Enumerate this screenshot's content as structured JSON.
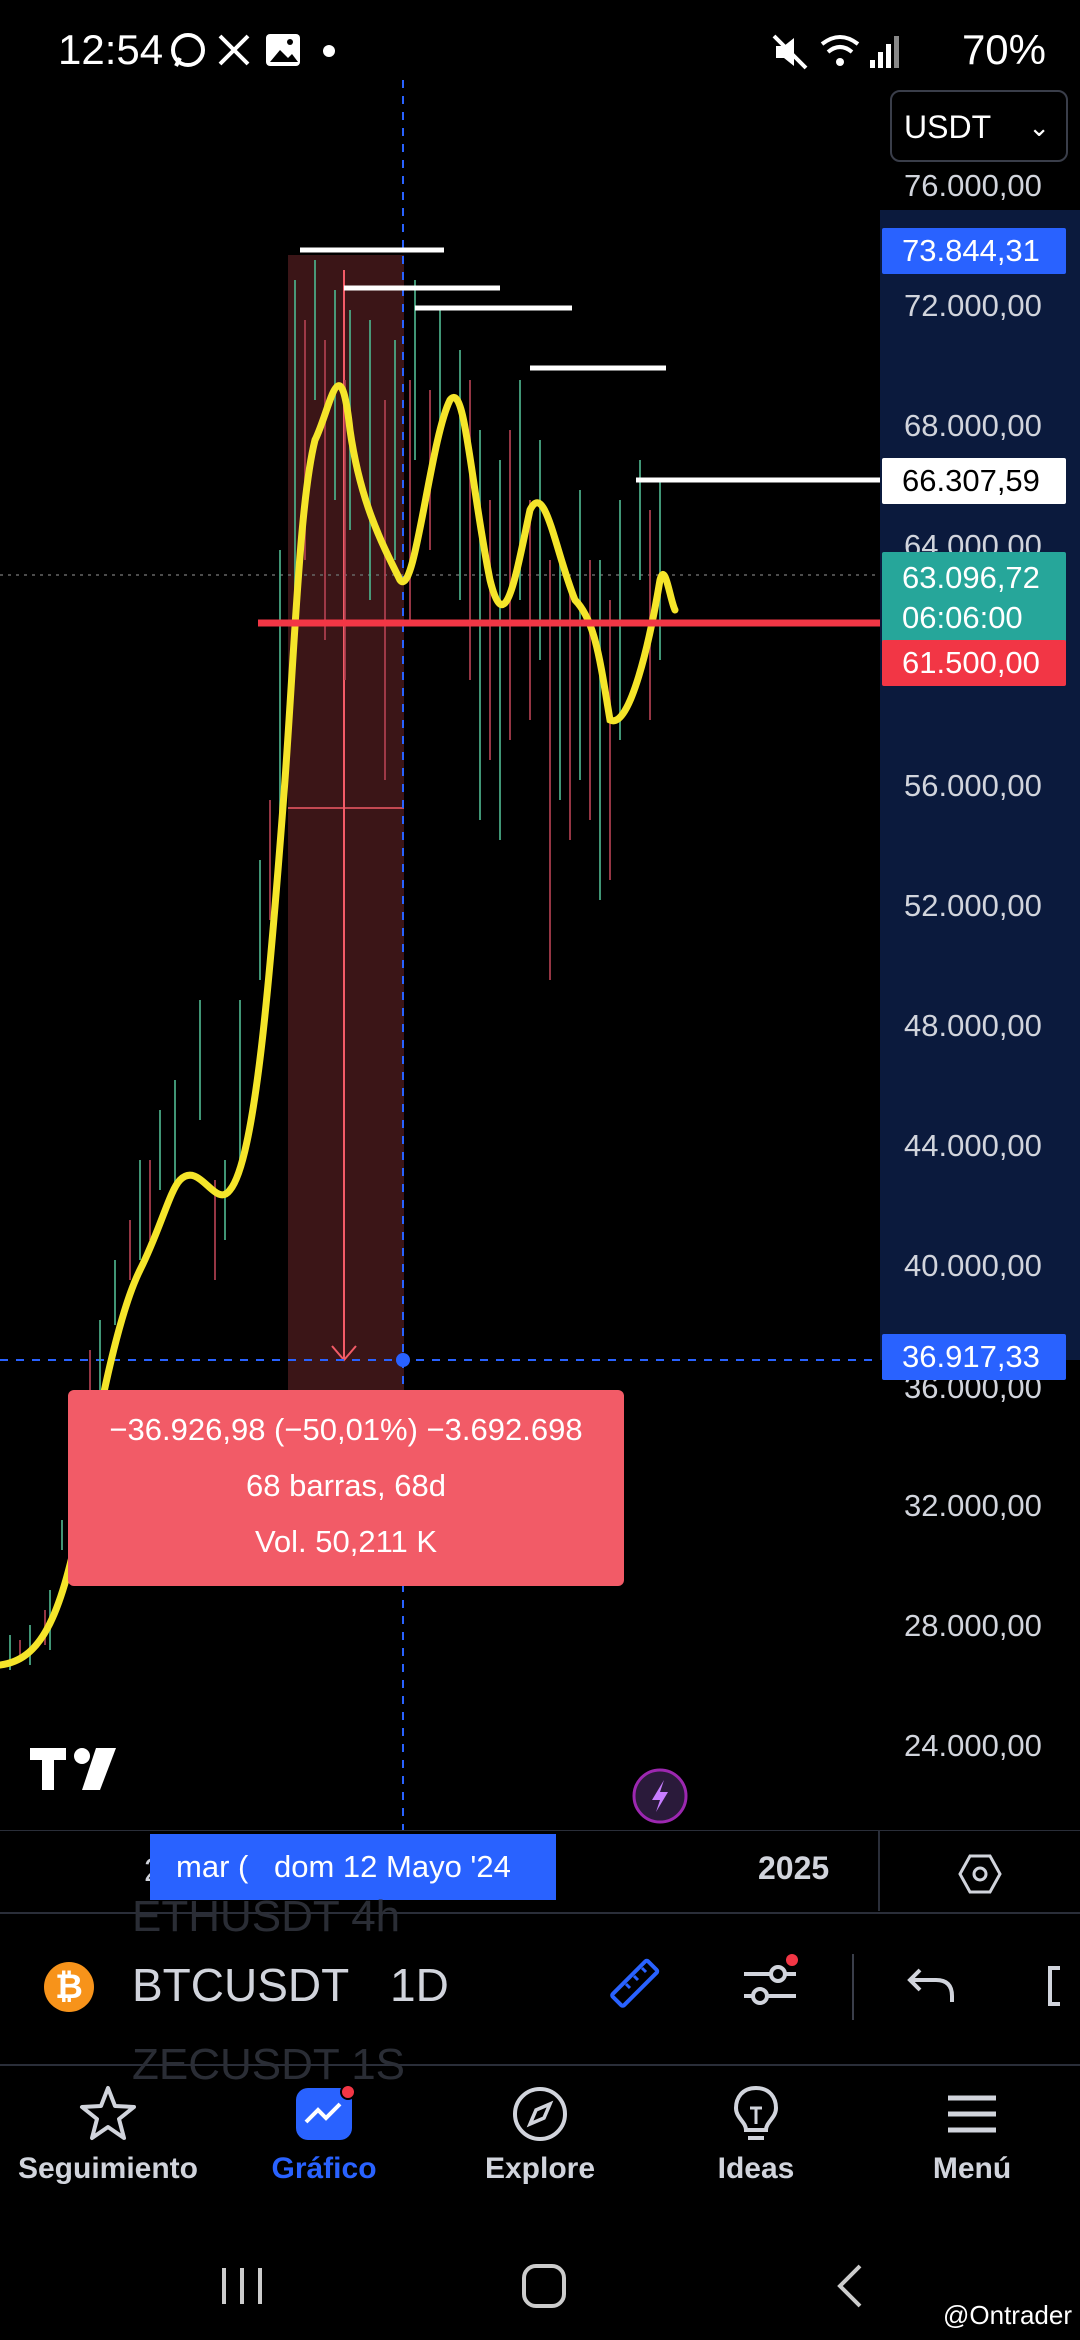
{
  "status": {
    "time": "12:54",
    "battery": "70%"
  },
  "currency": {
    "selected": "USDT"
  },
  "price_axis": {
    "labels": [
      "76.000,00",
      "72.000,00",
      "68.000,00",
      "64.000,00",
      "56.000,00",
      "52.000,00",
      "48.000,00",
      "44.000,00",
      "40.000,00",
      "36.000,00",
      "32.000,00",
      "28.000,00",
      "24.000,00"
    ],
    "badges": {
      "high": "73.844,31",
      "level": "66.307,59",
      "last_price": "63.096,72",
      "countdown": "06:06:00",
      "support": "61.500,00",
      "cursor": "36.917,33"
    },
    "colors": {
      "high": "#2962ff",
      "last": "#26a69a",
      "support": "#f23645",
      "cursor": "#2962ff"
    }
  },
  "measure": {
    "change": "−36.926,98 (−50,01%) −3.692.698",
    "bars": "68 barras, 68d",
    "volume": "Vol. 50,211 K"
  },
  "time_axis": {
    "left_partial": "2",
    "partial_label": "mar (",
    "cursor_date": "dom 12 Mayo '24",
    "year_label": "2025"
  },
  "symbol_bar": {
    "symbol": "BTCUSDT",
    "interval": "1D",
    "ghost_above": "ETHUSDT 4h",
    "ghost_below": "ZECUSDT 1S"
  },
  "nav": {
    "items": [
      {
        "label": "Seguimiento",
        "icon": "star-icon"
      },
      {
        "label": "Gráfico",
        "icon": "chart-icon"
      },
      {
        "label": "Explore",
        "icon": "compass-icon"
      },
      {
        "label": "Ideas",
        "icon": "lightbulb-icon"
      },
      {
        "label": "Menú",
        "icon": "menu-icon"
      }
    ],
    "active_color": "#2962ff"
  },
  "watermark": "@Ontrader"
}
